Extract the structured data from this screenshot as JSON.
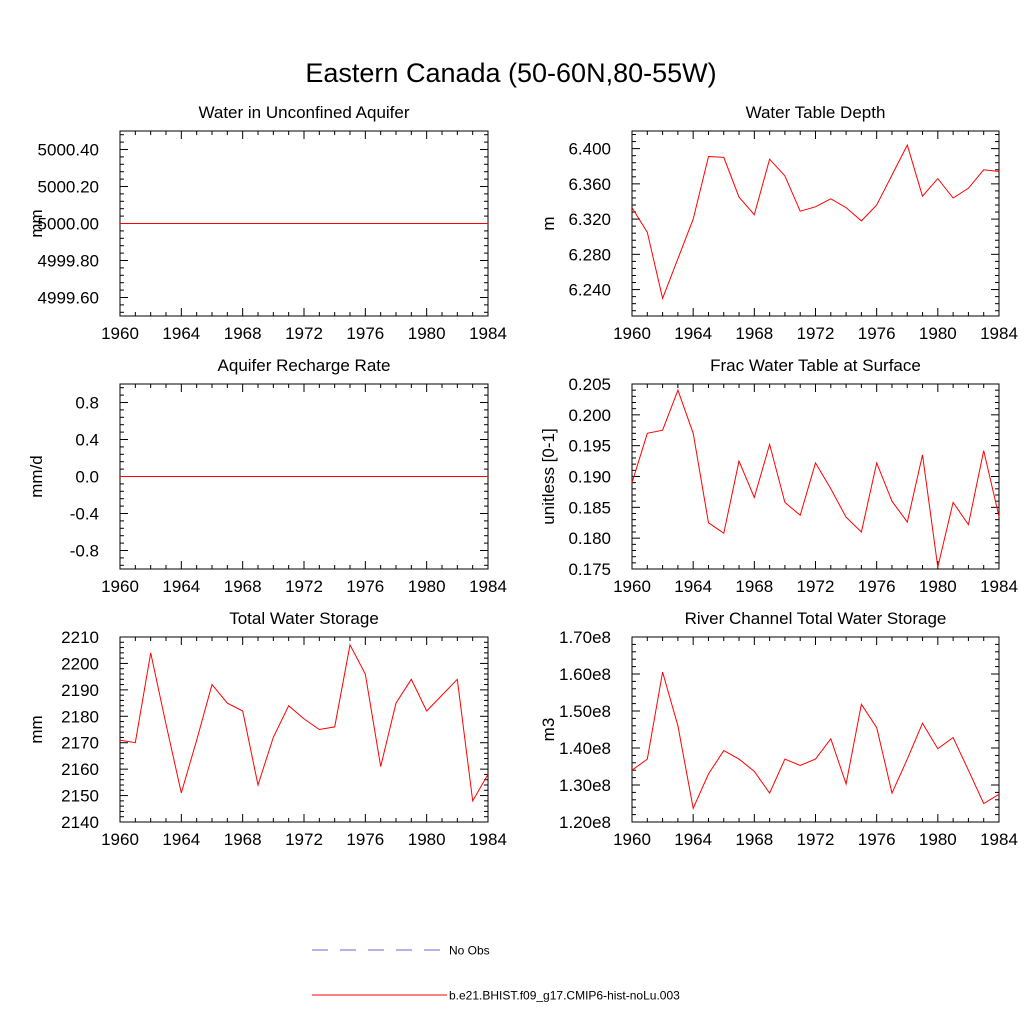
{
  "figure": {
    "title": "Eastern Canada (50-60N,80-55W)"
  },
  "legend": {
    "placement": "bottom-center",
    "entries": [
      {
        "label": "No Obs",
        "color": "#6a6ad0",
        "dash": "dashed"
      },
      {
        "label": "b.e21.BHIST.f09_g17.CMIP6-hist-noLu.003",
        "color": "#ff0000",
        "dash": "solid"
      }
    ]
  },
  "chart_data": [
    {
      "type": "line",
      "title": "Water in Unconfined Aquifer",
      "ylabel": "mm",
      "xlim": [
        1960,
        1984
      ],
      "ylim": [
        4999.5,
        5000.5
      ],
      "xticks": [
        1960,
        1964,
        1968,
        1972,
        1976,
        1980,
        1984
      ],
      "yticks": [
        4999.6,
        4999.8,
        5000.0,
        5000.2,
        5000.4
      ],
      "ytick_labels": [
        "4999.60",
        "4999.80",
        "5000.00",
        "5000.20",
        "5000.40"
      ],
      "x": [
        1960,
        1984
      ],
      "series": [
        {
          "color": "#ff0000",
          "values": [
            5000.0,
            5000.0
          ]
        }
      ]
    },
    {
      "type": "line",
      "title": "Water Table Depth",
      "ylabel": "m",
      "xlim": [
        1960,
        1984
      ],
      "ylim": [
        6.21,
        6.42
      ],
      "xticks": [
        1960,
        1964,
        1968,
        1972,
        1976,
        1980,
        1984
      ],
      "yticks": [
        6.24,
        6.28,
        6.32,
        6.36,
        6.4
      ],
      "ytick_labels": [
        "6.240",
        "6.280",
        "6.320",
        "6.360",
        "6.400"
      ],
      "x": [
        1960,
        1961,
        1962,
        1963,
        1964,
        1965,
        1966,
        1967,
        1968,
        1969,
        1970,
        1971,
        1972,
        1973,
        1974,
        1975,
        1976,
        1977,
        1978,
        1979,
        1980,
        1981,
        1982,
        1983,
        1984
      ],
      "series": [
        {
          "color": "#ff0000",
          "values": [
            6.333,
            6.305,
            6.23,
            6.275,
            6.32,
            6.391,
            6.39,
            6.345,
            6.325,
            6.388,
            6.369,
            6.329,
            6.334,
            6.343,
            6.333,
            6.318,
            6.336,
            6.37,
            6.404,
            6.346,
            6.366,
            6.344,
            6.355,
            6.376,
            6.374
          ]
        }
      ]
    },
    {
      "type": "line",
      "title": "Aquifer Recharge Rate",
      "ylabel": "mm/d",
      "xlim": [
        1960,
        1984
      ],
      "ylim": [
        -1.0,
        1.0
      ],
      "xticks": [
        1960,
        1964,
        1968,
        1972,
        1976,
        1980,
        1984
      ],
      "yticks": [
        -0.8,
        -0.4,
        0.0,
        0.4,
        0.8
      ],
      "ytick_labels": [
        "-0.8",
        "-0.4",
        "0.0",
        "0.4",
        "0.8"
      ],
      "x": [
        1960,
        1984
      ],
      "series": [
        {
          "color": "#ff0000",
          "values": [
            0.0,
            0.0
          ]
        }
      ]
    },
    {
      "type": "line",
      "title": "Frac Water Table at Surface",
      "ylabel": "unitless [0-1]",
      "xlim": [
        1960,
        1984
      ],
      "ylim": [
        0.175,
        0.205
      ],
      "xticks": [
        1960,
        1964,
        1968,
        1972,
        1976,
        1980,
        1984
      ],
      "yticks": [
        0.175,
        0.18,
        0.185,
        0.19,
        0.195,
        0.2,
        0.205
      ],
      "ytick_labels": [
        "0.175",
        "0.180",
        "0.185",
        "0.190",
        "0.195",
        "0.200",
        "0.205"
      ],
      "x": [
        1960,
        1961,
        1962,
        1963,
        1964,
        1965,
        1966,
        1967,
        1968,
        1969,
        1970,
        1971,
        1972,
        1973,
        1974,
        1975,
        1976,
        1977,
        1978,
        1979,
        1980,
        1981,
        1982,
        1983,
        1984
      ],
      "series": [
        {
          "color": "#ff0000",
          "values": [
            0.189,
            0.197,
            0.1975,
            0.204,
            0.197,
            0.1825,
            0.1808,
            0.1925,
            0.1866,
            0.1952,
            0.1858,
            0.1837,
            0.1922,
            0.188,
            0.1834,
            0.181,
            0.1922,
            0.186,
            0.1826,
            0.1935,
            0.1753,
            0.1858,
            0.1822,
            0.1942,
            0.1835
          ]
        }
      ]
    },
    {
      "type": "line",
      "title": "Total Water Storage",
      "ylabel": "mm",
      "xlim": [
        1960,
        1984
      ],
      "ylim": [
        2140,
        2210
      ],
      "xticks": [
        1960,
        1964,
        1968,
        1972,
        1976,
        1980,
        1984
      ],
      "yticks": [
        2140,
        2150,
        2160,
        2170,
        2180,
        2190,
        2200,
        2210
      ],
      "ytick_labels": [
        "2140",
        "2150",
        "2160",
        "2170",
        "2180",
        "2190",
        "2200",
        "2210"
      ],
      "x": [
        1960,
        1961,
        1962,
        1963,
        1964,
        1965,
        1966,
        1967,
        1968,
        1969,
        1970,
        1971,
        1972,
        1973,
        1974,
        1975,
        1976,
        1977,
        1978,
        1979,
        1980,
        1981,
        1982,
        1983,
        1984
      ],
      "series": [
        {
          "color": "#ff0000",
          "values": [
            2171,
            2170,
            2204,
            2177,
            2151,
            2171,
            2192,
            2185,
            2182,
            2154,
            2172,
            2184,
            2179,
            2175,
            2176,
            2207,
            2196,
            2161,
            2185,
            2194,
            2182,
            2188,
            2194,
            2148,
            2158
          ]
        }
      ]
    },
    {
      "type": "line",
      "title": "River Channel Total Water Storage",
      "ylabel": "m3",
      "xlim": [
        1960,
        1984
      ],
      "ylim": [
        120000000.0,
        170000000.0
      ],
      "xticks": [
        1960,
        1964,
        1968,
        1972,
        1976,
        1980,
        1984
      ],
      "yticks": [
        120000000.0,
        130000000.0,
        140000000.0,
        150000000.0,
        160000000.0,
        170000000.0
      ],
      "ytick_labels": [
        "1.20e8",
        "1.30e8",
        "1.40e8",
        "1.50e8",
        "1.60e8",
        "1.70e8"
      ],
      "x": [
        1960,
        1961,
        1962,
        1963,
        1964,
        1965,
        1966,
        1967,
        1968,
        1969,
        1970,
        1971,
        1972,
        1973,
        1974,
        1975,
        1976,
        1977,
        1978,
        1979,
        1980,
        1981,
        1982,
        1983,
        1984
      ],
      "series": [
        {
          "color": "#ff0000",
          "values": [
            134000000.0,
            137000000.0,
            160500000.0,
            146000000.0,
            123700000.0,
            133000000.0,
            139300000.0,
            137000000.0,
            133700000.0,
            127800000.0,
            137000000.0,
            135300000.0,
            137000000.0,
            142500000.0,
            130300000.0,
            151800000.0,
            145500000.0,
            127800000.0,
            137000000.0,
            146700000.0,
            139800000.0,
            142800000.0,
            134000000.0,
            125000000.0,
            127500000.0
          ]
        }
      ]
    }
  ]
}
